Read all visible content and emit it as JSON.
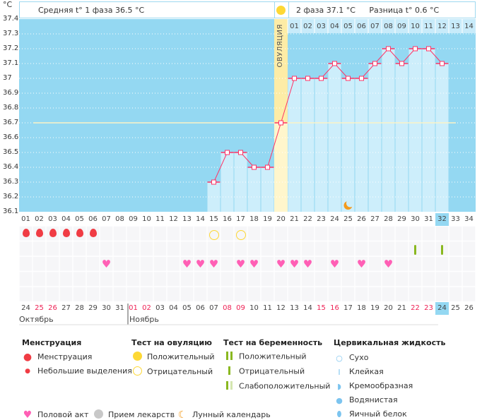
{
  "header": {
    "unit": "°C",
    "phase1": "Средняя t° 1 фаза  36.5 °C",
    "phase2": "2 фаза  37.1 °C",
    "difference": "Разница t° 0.6 °C",
    "ovulation_label": "ОВУЛЯЦИЯ"
  },
  "chart_data": {
    "type": "line",
    "ylim": [
      36.1,
      37.4
    ],
    "yticks": [
      "37.4",
      "37.3",
      "37.2",
      "37.1",
      "37",
      "36.9",
      "36.8",
      "36.7",
      "36.6",
      "36.5",
      "36.4",
      "36.3",
      "36.2",
      "36.1"
    ],
    "cycle_days": [
      "01",
      "02",
      "03",
      "04",
      "05",
      "06",
      "07",
      "08",
      "09",
      "10",
      "11",
      "12",
      "13",
      "14",
      "15",
      "16",
      "17",
      "18",
      "19",
      "20",
      "21",
      "22",
      "23",
      "24",
      "25",
      "26",
      "27",
      "28",
      "29",
      "30",
      "31",
      "32",
      "33",
      "34"
    ],
    "phase2_days": [
      "01",
      "02",
      "03",
      "04",
      "05",
      "06",
      "07",
      "08",
      "09",
      "10",
      "11",
      "12",
      "13",
      "14"
    ],
    "temperatures": [
      null,
      null,
      null,
      null,
      null,
      null,
      null,
      null,
      null,
      null,
      null,
      null,
      null,
      null,
      36.3,
      36.5,
      36.5,
      36.4,
      36.4,
      36.7,
      37.0,
      37.0,
      37.0,
      37.1,
      37.0,
      37.0,
      37.1,
      37.2,
      37.1,
      37.2,
      37.2,
      37.1,
      null,
      null
    ],
    "coverline": 36.7,
    "ovulation_day": 20,
    "current_day": 32,
    "moon_day": 25,
    "grid": true
  },
  "events": {
    "menstruation_days": [
      1,
      2,
      3,
      4,
      5,
      6
    ],
    "ovulation_test_negative_days": [
      15,
      17
    ],
    "pregnancy_test_negative_days": [
      30,
      32
    ],
    "intercourse_days": [
      7,
      13,
      14,
      15,
      17,
      18,
      20,
      21,
      22,
      24,
      26,
      28
    ]
  },
  "dates": {
    "labels": [
      "24",
      "25",
      "26",
      "27",
      "28",
      "29",
      "30",
      "31",
      "01",
      "02",
      "03",
      "04",
      "05",
      "06",
      "07",
      "08",
      "09",
      "10",
      "11",
      "12",
      "13",
      "14",
      "15",
      "16",
      "17",
      "18",
      "19",
      "20",
      "21",
      "22",
      "23",
      "24",
      "25",
      "26"
    ],
    "weekend": [
      false,
      true,
      true,
      false,
      false,
      false,
      false,
      false,
      true,
      true,
      false,
      false,
      false,
      false,
      false,
      true,
      true,
      false,
      false,
      false,
      false,
      false,
      true,
      true,
      false,
      false,
      false,
      false,
      false,
      true,
      true,
      false,
      false,
      false
    ],
    "months": [
      "Октябрь",
      "Ноябрь"
    ]
  },
  "colors": {
    "sky": "#94d8f2",
    "bar": "#cdeefb",
    "ovulation": "#fdeca6",
    "line": "#ff3366",
    "weekend": "#ee2255",
    "heart": "#ff5fb5",
    "drop": "#f03c44",
    "test": "#8ab820"
  },
  "legend": {
    "menstruation": {
      "title": "Менструация",
      "items": [
        "Менструация",
        "Небольшие выделения"
      ]
    },
    "ovulation_test": {
      "title": "Тест на овуляцию",
      "items": [
        "Положительный",
        "Отрицательный"
      ]
    },
    "pregnancy_test": {
      "title": "Тест на беременность",
      "items": [
        "Положительный",
        "Отрицательный",
        "Слабоположительный"
      ]
    },
    "cervical": {
      "title": "Цервикальная жидкость",
      "items": [
        "Сухо",
        "Клейкая",
        "Кремообразная",
        "Водянистая",
        "Яичный белок"
      ]
    },
    "other": [
      "Половой акт",
      "Прием лекарств",
      "Лунный календарь"
    ]
  }
}
